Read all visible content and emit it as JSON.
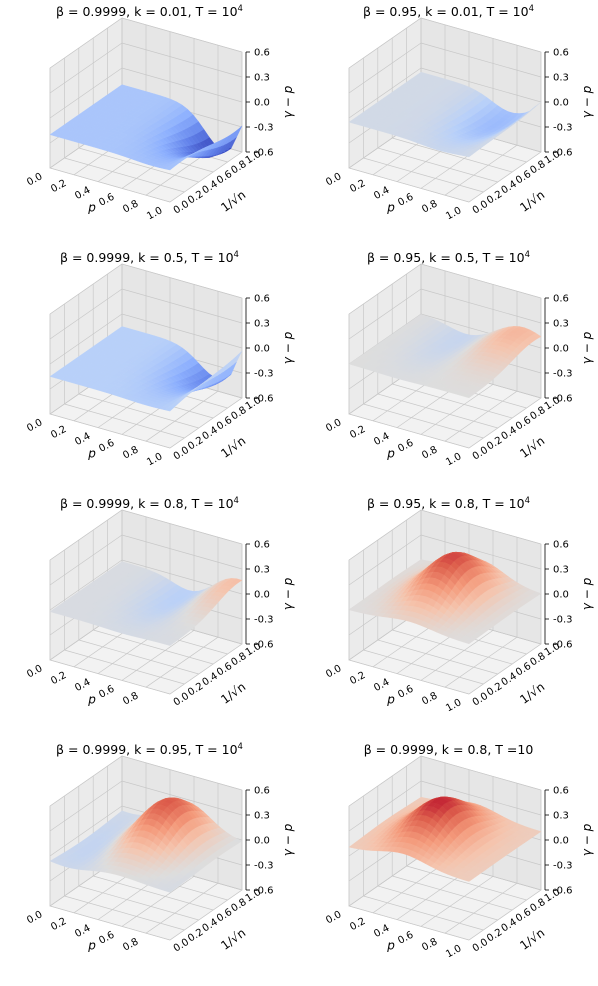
{
  "chart_data": [
    {
      "type": "surface",
      "title": {
        "prefix": "β = 0.9999, k = 0.01, T = 10",
        "sup": "4"
      },
      "xlabel": "p",
      "ylabel": "1/√n",
      "zlabel": "γ − p",
      "xticks": [
        "0.0",
        "0.2",
        "0.4",
        "0.6",
        "0.8",
        "1.0"
      ],
      "yticks": [
        "0.0",
        "0.2",
        "0.4",
        "0.6",
        "0.8",
        "1.0"
      ],
      "zticks": [
        "0.6",
        "0.3",
        "0.0",
        "-0.3",
        "-0.6"
      ],
      "zlim": [
        -0.6,
        0.6
      ],
      "colormap": "coolwarm",
      "grid": true,
      "surface": {
        "base": -0.2,
        "dip_x": 0.85,
        "dip_y": 1.0,
        "dip_depth": -0.45,
        "end_up": 0.0
      }
    },
    {
      "type": "surface",
      "title": {
        "prefix": "β = 0.95, k = 0.01, T = 10",
        "sup": "4"
      },
      "xlabel": "p",
      "ylabel": "1/√n",
      "zlabel": "γ − p",
      "xticks": [
        "0.0",
        "0.2",
        "0.4",
        "0.6",
        "0.8",
        "1.0"
      ],
      "yticks": [
        "0.0",
        "0.2",
        "0.4",
        "0.6",
        "0.8",
        "1.0"
      ],
      "zticks": [
        "0.6",
        "0.3",
        "0.0",
        "-0.3",
        "-0.6"
      ],
      "zlim": [
        -0.6,
        0.6
      ],
      "colormap": "coolwarm",
      "grid": true,
      "surface": {
        "base": -0.05,
        "dip_x": 0.75,
        "dip_y": 0.8,
        "dip_depth": -0.2,
        "end_up": 0.05
      }
    },
    {
      "type": "surface",
      "title": {
        "prefix": "β = 0.9999, k = 0.5, T = 10",
        "sup": "4"
      },
      "xlabel": "p",
      "ylabel": "1/√n",
      "zlabel": "γ − p",
      "xticks": [
        "0.0",
        "0.2",
        "0.4",
        "0.6",
        "0.8",
        "1.0"
      ],
      "yticks": [
        "0.0",
        "0.2",
        "0.4",
        "0.6",
        "0.8",
        "1.0"
      ],
      "zticks": [
        "0.6",
        "0.3",
        "0.0",
        "-0.3",
        "-0.6"
      ],
      "zlim": [
        -0.6,
        0.6
      ],
      "colormap": "coolwarm",
      "grid": true,
      "surface": {
        "base": -0.15,
        "dip_x": 0.8,
        "dip_y": 1.0,
        "dip_depth": -0.3,
        "end_up": 0.1
      }
    },
    {
      "type": "surface",
      "title": {
        "prefix": "β = 0.95, k = 0.5, T = 10",
        "sup": "4"
      },
      "xlabel": "p",
      "ylabel": "1/√n",
      "zlabel": "γ − p",
      "xticks": [
        "0.0",
        "0.2",
        "0.4",
        "0.6",
        "0.8",
        "1.0"
      ],
      "yticks": [
        "0.0",
        "0.2",
        "0.4",
        "0.6",
        "0.8",
        "1.0"
      ],
      "zticks": [
        "0.6",
        "0.3",
        "0.0",
        "-0.3",
        "-0.6"
      ],
      "zlim": [
        -0.6,
        0.6
      ],
      "colormap": "coolwarm",
      "grid": true,
      "surface": {
        "base": 0.0,
        "dip_x": 0.4,
        "dip_y": 0.9,
        "dip_depth": -0.1,
        "bump_x": 0.85,
        "bump_y": 0.9,
        "bump_h": 0.2
      }
    },
    {
      "type": "surface",
      "title": {
        "prefix": "β = 0.9999, k = 0.8, T = 10",
        "sup": "4"
      },
      "xlabel": "p",
      "ylabel": "1/√n",
      "zlabel": "γ − p",
      "xticks": [
        "0.0",
        "0.2",
        "0.4",
        "0.6",
        "0.8"
      ],
      "yticks": [
        "0.0",
        "0.2",
        "0.4",
        "0.6",
        "0.8",
        "1.0"
      ],
      "zticks": [
        "0.6",
        "0.3",
        "0.0",
        "-0.3",
        "-0.6"
      ],
      "zlim": [
        -0.6,
        0.6
      ],
      "colormap": "coolwarm",
      "grid": true,
      "surface": {
        "base": -0.02,
        "dip_x": 0.6,
        "dip_y": 0.9,
        "dip_depth": -0.15,
        "bump_x": 0.95,
        "bump_y": 0.95,
        "bump_h": 0.2
      }
    },
    {
      "type": "surface",
      "title": {
        "prefix": "β = 0.95, k = 0.8, T = 10",
        "sup": "4"
      },
      "xlabel": "p",
      "ylabel": "1/√n",
      "zlabel": "γ − p",
      "xticks": [
        "0.0",
        "0.2",
        "0.4",
        "0.6",
        "0.8",
        "1.0"
      ],
      "yticks": [
        "0.0",
        "0.2",
        "0.4",
        "0.6",
        "0.8",
        "1.0"
      ],
      "zticks": [
        "0.6",
        "0.3",
        "0.0",
        "-0.3",
        "-0.6"
      ],
      "zlim": [
        -0.6,
        0.6
      ],
      "colormap": "coolwarm",
      "grid": true,
      "surface": {
        "base": 0.0,
        "bump_x": 0.5,
        "bump_y": 0.6,
        "bump_h": 0.5
      }
    },
    {
      "type": "surface",
      "title": {
        "prefix": "β = 0.9999, k = 0.95, T = 10",
        "sup": "4"
      },
      "xlabel": "p",
      "ylabel": "1/√n",
      "zlabel": "γ − p",
      "xticks": [
        "0.0",
        "0.2",
        "0.4",
        "0.6",
        "0.8"
      ],
      "yticks": [
        "0.0",
        "0.2",
        "0.4",
        "0.6",
        "0.8",
        "1.0"
      ],
      "zticks": [
        "0.6",
        "0.3",
        "0.0",
        "-0.3",
        "-0.6"
      ],
      "zlim": [
        -0.6,
        0.6
      ],
      "colormap": "coolwarm",
      "grid": true,
      "surface": {
        "base": -0.03,
        "dip_x": 0.15,
        "dip_y": 0.5,
        "dip_depth": -0.1,
        "bump_x": 0.55,
        "bump_y": 0.7,
        "bump_h": 0.5
      }
    },
    {
      "type": "surface",
      "title": {
        "prefix": "β = 0.9999, k = 0.8, T =10",
        "sup": ""
      },
      "xlabel": "p",
      "ylabel": "1/√n",
      "zlabel": "γ − p",
      "xticks": [
        "0.0",
        "0.2",
        "0.4",
        "0.6",
        "0.8",
        "1.0"
      ],
      "yticks": [
        "0.0",
        "0.2",
        "0.4",
        "0.6",
        "0.8",
        "1.0"
      ],
      "zticks": [
        "0.6",
        "0.3",
        "0.0",
        "-0.3",
        "-0.6"
      ],
      "zlim": [
        -0.6,
        0.6
      ],
      "colormap": "coolwarm",
      "grid": true,
      "surface": {
        "base": 0.1,
        "bump_x": 0.45,
        "bump_y": 0.5,
        "bump_h": 0.45
      }
    }
  ]
}
